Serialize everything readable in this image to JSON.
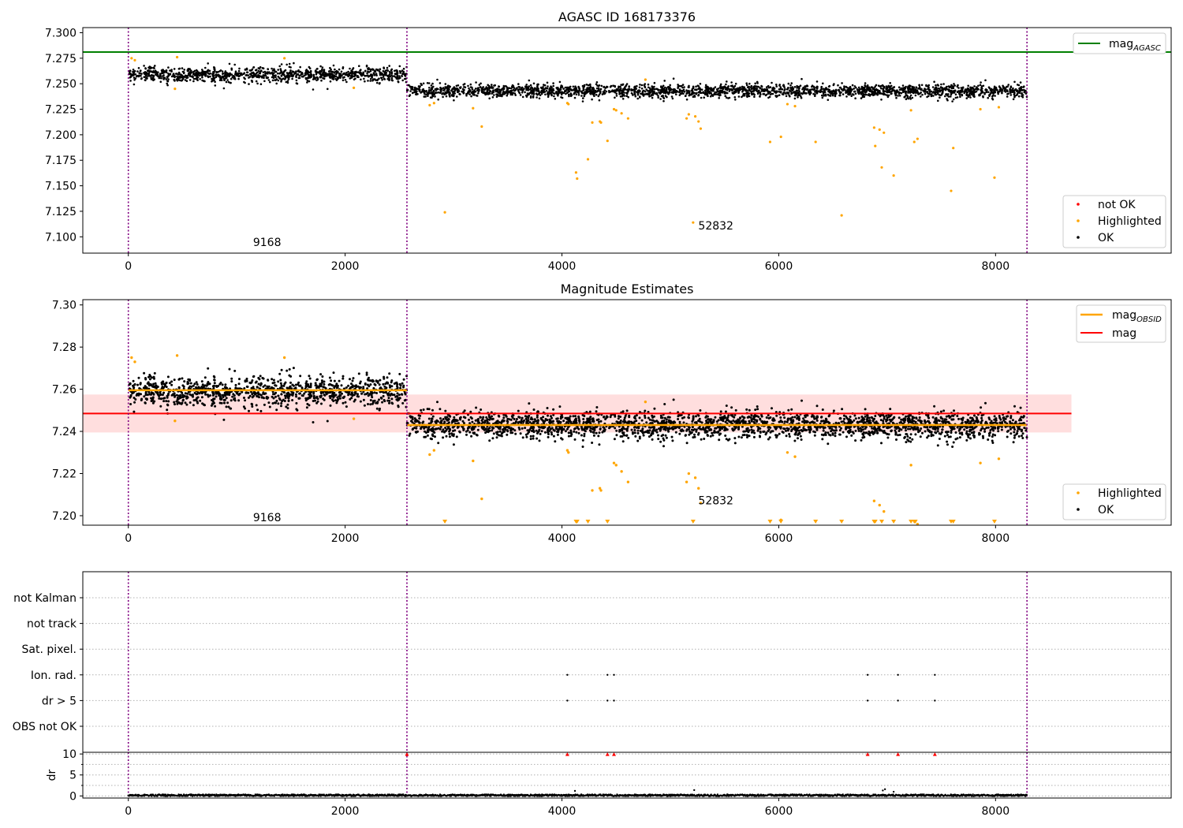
{
  "chart_data": [
    {
      "type": "scatter",
      "title": "AGASC ID 168173376",
      "xlim": [
        -420,
        9620
      ],
      "ylim": [
        7.084,
        7.305
      ],
      "xticks": [
        0,
        2000,
        4000,
        6000,
        8000
      ],
      "xtick_labels": [
        "0",
        "2000",
        "4000",
        "6000",
        "8000"
      ],
      "yticks": [
        7.1,
        7.125,
        7.15,
        7.175,
        7.2,
        7.225,
        7.25,
        7.275,
        7.3
      ],
      "ytick_labels": [
        "7.100",
        "7.125",
        "7.150",
        "7.175",
        "7.200",
        "7.225",
        "7.250",
        "7.275",
        "7.300"
      ],
      "obsid_boundaries": [
        0,
        2570,
        8290
      ],
      "obsid_labels": [
        {
          "text": "9168",
          "x": 1280,
          "y": 7.095
        },
        {
          "text": "52832",
          "x": 5420,
          "y": 7.111
        }
      ],
      "reference_line": {
        "name": "mag_AGASC",
        "y": 7.281,
        "color": "#008000"
      },
      "series": [
        {
          "name": "OK",
          "color": "#000000",
          "segments": [
            {
              "x_range": [
                0,
                2570
              ],
              "mean": 7.259,
              "std": 0.0035
            },
            {
              "x_range": [
                2570,
                8290
              ],
              "mean": 7.243,
              "std": 0.0032
            }
          ]
        },
        {
          "name": "Highlighted",
          "color": "#ffa500",
          "points": [
            [
              30,
              7.275
            ],
            [
              60,
              7.273
            ],
            [
              430,
              7.245
            ],
            [
              450,
              7.276
            ],
            [
              1440,
              7.275
            ],
            [
              2080,
              7.246
            ],
            [
              2780,
              7.229
            ],
            [
              2820,
              7.231
            ],
            [
              2920,
              7.124
            ],
            [
              3180,
              7.226
            ],
            [
              3260,
              7.208
            ],
            [
              4050,
              7.231
            ],
            [
              4060,
              7.23
            ],
            [
              4130,
              7.163
            ],
            [
              4140,
              7.157
            ],
            [
              4240,
              7.176
            ],
            [
              4280,
              7.212
            ],
            [
              4350,
              7.213
            ],
            [
              4360,
              7.212
            ],
            [
              4420,
              7.194
            ],
            [
              4480,
              7.225
            ],
            [
              4500,
              7.224
            ],
            [
              4550,
              7.221
            ],
            [
              4610,
              7.216
            ],
            [
              4770,
              7.254
            ],
            [
              5150,
              7.216
            ],
            [
              5170,
              7.22
            ],
            [
              5210,
              7.114
            ],
            [
              5230,
              7.218
            ],
            [
              5260,
              7.213
            ],
            [
              5280,
              7.206
            ],
            [
              5920,
              7.193
            ],
            [
              6020,
              7.198
            ],
            [
              6080,
              7.23
            ],
            [
              6150,
              7.228
            ],
            [
              6340,
              7.193
            ],
            [
              6580,
              7.121
            ],
            [
              6880,
              7.207
            ],
            [
              6890,
              7.189
            ],
            [
              6930,
              7.205
            ],
            [
              6950,
              7.168
            ],
            [
              6970,
              7.202
            ],
            [
              7060,
              7.16
            ],
            [
              7220,
              7.224
            ],
            [
              7250,
              7.193
            ],
            [
              7280,
              7.196
            ],
            [
              7590,
              7.145
            ],
            [
              7610,
              7.187
            ],
            [
              7860,
              7.225
            ],
            [
              7990,
              7.158
            ],
            [
              8030,
              7.227
            ]
          ]
        },
        {
          "name": "not OK",
          "color": "#ff0000",
          "points": []
        }
      ],
      "legends": [
        {
          "position": "upper right",
          "entries": [
            {
              "label": "mag",
              "subscript": "AGASC",
              "color": "#008000",
              "marker": "line"
            }
          ]
        },
        {
          "position": "lower right",
          "entries": [
            {
              "label": "not OK",
              "color": "#ff0000",
              "marker": "dot"
            },
            {
              "label": "Highlighted",
              "color": "#ffa500",
              "marker": "dot"
            },
            {
              "label": "OK",
              "color": "#000000",
              "marker": "dot"
            }
          ]
        }
      ]
    },
    {
      "type": "scatter",
      "title": "Magnitude Estimates",
      "xlim": [
        -420,
        9620
      ],
      "ylim": [
        7.1955,
        7.3025
      ],
      "xticks": [
        0,
        2000,
        4000,
        6000,
        8000
      ],
      "xtick_labels": [
        "0",
        "2000",
        "4000",
        "6000",
        "8000"
      ],
      "yticks": [
        7.2,
        7.22,
        7.24,
        7.26,
        7.28,
        7.3
      ],
      "ytick_labels": [
        "7.20",
        "7.22",
        "7.24",
        "7.26",
        "7.28",
        "7.30"
      ],
      "obsid_boundaries": [
        0,
        2570,
        8290
      ],
      "obsid_labels": [
        {
          "text": "9168",
          "x": 1280,
          "y": 7.1993
        },
        {
          "text": "52832",
          "x": 5420,
          "y": 7.2072
        }
      ],
      "mag_band": {
        "y": 7.2485,
        "low": 7.2395,
        "high": 7.2575,
        "x_range": [
          -420,
          8700
        ],
        "color": "#ff0000"
      },
      "obsid_means": [
        {
          "x_range": [
            0,
            2570
          ],
          "y": 7.2595
        },
        {
          "x_range": [
            2570,
            8290
          ],
          "y": 7.243
        }
      ],
      "clipped_markers_x": [
        2920,
        4130,
        4140,
        4240,
        4420,
        5210,
        5920,
        6020,
        6340,
        6580,
        6880,
        6890,
        6950,
        7060,
        7220,
        7250,
        7260,
        7590,
        7610,
        7990
      ],
      "series": [
        {
          "name": "OK",
          "color": "#000000"
        },
        {
          "name": "Highlighted",
          "color": "#ffa500"
        }
      ],
      "legends": [
        {
          "position": "upper right",
          "entries": [
            {
              "label": "mag",
              "subscript": "OBSID",
              "color": "#ffa500",
              "marker": "line"
            },
            {
              "label": "mag",
              "subscript": "",
              "color": "#ff0000",
              "marker": "line"
            }
          ]
        },
        {
          "position": "lower right",
          "entries": [
            {
              "label": "Highlighted",
              "color": "#ffa500",
              "marker": "dot"
            },
            {
              "label": "OK",
              "color": "#000000",
              "marker": "dot"
            }
          ]
        }
      ]
    },
    {
      "type": "scatter",
      "title": "",
      "xlim": [
        -420,
        9620
      ],
      "flag_rows": [
        "not Kalman",
        "not track",
        "Sat. pixel.",
        "Ion. rad.",
        "dr > 5",
        "OBS not OK"
      ],
      "flag_points": [
        {
          "row": "Ion. rad.",
          "x": [
            4050,
            4420,
            4480,
            6820,
            7100,
            7440
          ]
        },
        {
          "row": "dr > 5",
          "x": [
            4050,
            4420,
            4480,
            6820,
            7100,
            7440
          ]
        }
      ]
    },
    {
      "type": "scatter",
      "title": "",
      "ylabel": "dr",
      "xlim": [
        -420,
        9620
      ],
      "ylim": [
        -0.5,
        10.4
      ],
      "xticks": [
        0,
        2000,
        4000,
        6000,
        8000
      ],
      "xtick_labels": [
        "0",
        "2000",
        "4000",
        "6000",
        "8000"
      ],
      "yticks": [
        0,
        5,
        10
      ],
      "ytick_labels": [
        "0",
        "5",
        "10"
      ],
      "minor_yticks": [
        2.5,
        7.5
      ],
      "dr_baseline": 0.15,
      "dr_spikes": [
        [
          4120,
          1.2
        ],
        [
          5220,
          1.4
        ],
        [
          6960,
          1.3
        ],
        [
          6980,
          1.6
        ],
        [
          7060,
          1.0
        ]
      ],
      "clipped_markers": {
        "y": 10,
        "x": [
          2570,
          4050,
          4420,
          4480,
          6820,
          7100,
          7440
        ],
        "color": "#ff0000"
      }
    }
  ]
}
